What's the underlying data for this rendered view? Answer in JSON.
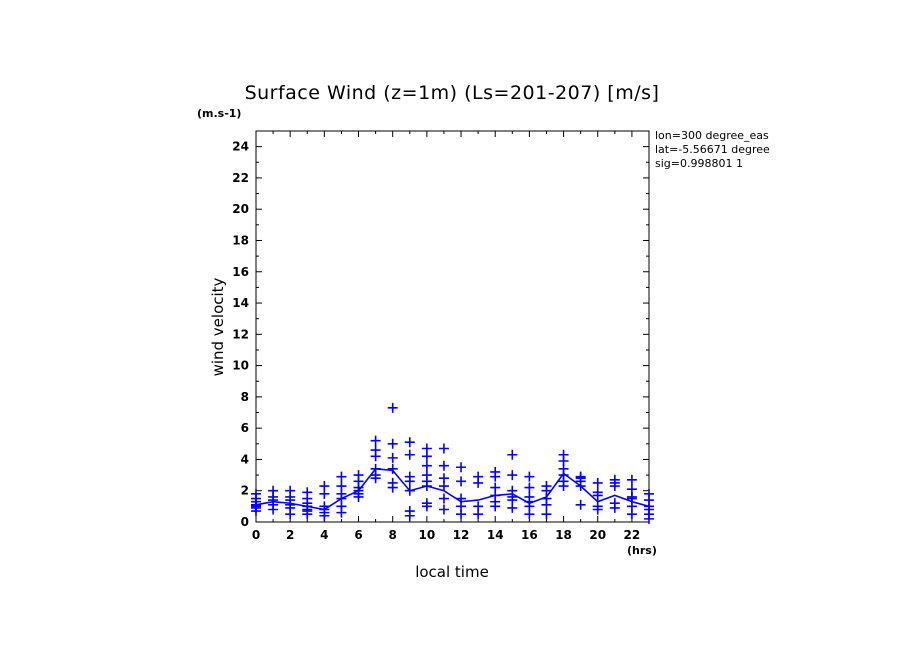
{
  "chart_data": {
    "type": "scatter",
    "title": "Surface Wind (z=1m) (Ls=201-207) [m/s]",
    "ylabel": "wind velocity",
    "yunit": "(m.s-1)",
    "xlabel": "local time",
    "xunit": "(hrs)",
    "xlim": [
      0,
      23
    ],
    "ylim": [
      0,
      25
    ],
    "xticks": [
      0,
      2,
      4,
      6,
      8,
      10,
      12,
      14,
      16,
      18,
      20,
      22
    ],
    "yticks": [
      0,
      2,
      4,
      6,
      8,
      10,
      12,
      14,
      16,
      18,
      20,
      22,
      24
    ],
    "info": [
      "lon=300 degree_eas",
      "lat=-5.56671 degree",
      "sig=0.998801 1"
    ],
    "color": "#0000ff",
    "scatter": {
      "x": [
        0,
        0,
        0,
        0,
        0,
        0,
        0,
        1,
        1,
        1,
        1,
        1,
        2,
        2,
        2,
        2,
        2,
        2,
        3,
        3,
        3,
        3,
        3,
        3,
        3,
        4,
        4,
        4,
        4,
        4,
        4,
        5,
        5,
        5,
        5,
        5,
        5,
        6,
        6,
        6,
        6,
        6,
        6,
        7,
        7,
        7,
        7,
        7,
        7,
        8,
        8,
        8,
        8,
        8,
        8,
        9,
        9,
        9,
        9,
        9,
        9,
        9,
        10,
        10,
        10,
        10,
        10,
        10,
        10,
        10,
        11,
        11,
        11,
        11,
        11,
        11,
        12,
        12,
        12,
        12,
        12,
        13,
        13,
        13,
        13,
        14,
        14,
        14,
        14,
        14,
        14,
        15,
        15,
        15,
        15,
        15,
        15,
        16,
        16,
        16,
        16,
        16,
        16,
        17,
        17,
        17,
        17,
        17,
        18,
        18,
        18,
        18,
        18,
        18,
        19,
        19,
        19,
        19,
        19,
        20,
        20,
        20,
        20,
        20,
        21,
        21,
        21,
        21,
        21,
        22,
        22,
        22,
        22,
        22,
        22,
        23,
        23,
        23,
        23,
        23,
        23
      ],
      "y": [
        0.7,
        1.0,
        1.3,
        1.5,
        1.8,
        1.1,
        0.9,
        2.0,
        1.6,
        1.4,
        1.1,
        0.8,
        2.0,
        1.6,
        1.4,
        1.1,
        0.9,
        0.5,
        1.9,
        1.5,
        1.2,
        1.0,
        0.8,
        0.7,
        0.5,
        2.3,
        1.8,
        1.0,
        0.8,
        0.6,
        0.4,
        2.9,
        2.3,
        1.8,
        1.5,
        1.0,
        0.6,
        3.0,
        2.6,
        2.2,
        2.0,
        1.8,
        1.6,
        5.2,
        4.6,
        4.2,
        3.4,
        3.0,
        2.8,
        7.3,
        5.0,
        4.1,
        3.4,
        2.5,
        2.2,
        5.1,
        4.3,
        2.9,
        2.6,
        2.0,
        0.7,
        0.4,
        4.7,
        4.2,
        3.6,
        3.0,
        2.6,
        2.3,
        1.2,
        1.0,
        4.7,
        3.6,
        2.8,
        2.3,
        1.5,
        0.8,
        3.5,
        2.6,
        1.5,
        1.0,
        0.5,
        2.9,
        2.5,
        1.0,
        0.5,
        3.2,
        2.9,
        2.2,
        1.7,
        1.3,
        1.0,
        4.3,
        3.0,
        2.0,
        1.6,
        1.4,
        0.9,
        2.9,
        2.2,
        1.6,
        1.3,
        1.0,
        0.5,
        2.3,
        2.0,
        1.5,
        1.1,
        0.5,
        4.3,
        3.9,
        3.4,
        3.0,
        2.6,
        2.3,
        2.9,
        2.8,
        2.6,
        2.3,
        1.1,
        2.5,
        1.9,
        1.7,
        1.0,
        0.8,
        2.7,
        2.5,
        2.3,
        1.2,
        0.9,
        2.7,
        2.1,
        1.6,
        1.5,
        1.0,
        0.5,
        1.8,
        1.4,
        1.0,
        0.8,
        0.5,
        0.2
      ]
    },
    "mean_line": {
      "x": [
        0,
        1,
        2,
        3,
        4,
        5,
        6,
        7,
        8,
        9,
        10,
        11,
        12,
        13,
        14,
        15,
        16,
        17,
        18,
        19,
        20,
        21,
        22,
        23
      ],
      "y": [
        1.1,
        1.3,
        1.2,
        1.0,
        0.8,
        1.5,
        2.0,
        3.4,
        3.3,
        2.0,
        2.3,
        2.0,
        1.3,
        1.4,
        1.7,
        1.8,
        1.2,
        1.6,
        3.1,
        2.3,
        1.3,
        1.7,
        1.3,
        1.0
      ]
    }
  }
}
